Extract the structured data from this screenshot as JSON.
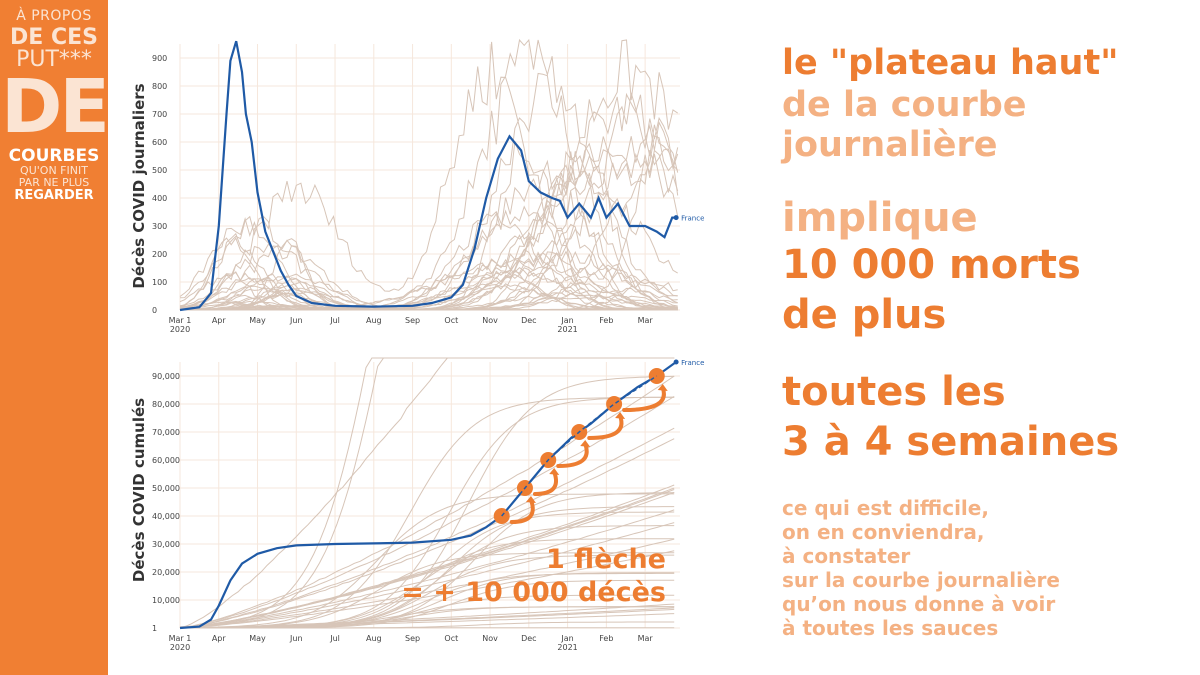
{
  "sidebar": {
    "line1": "À PROPOS",
    "line2": "DE CES",
    "line3": "PUT***",
    "line4": "DE",
    "line5": "COURBES",
    "line6": "QU'ON FINIT",
    "line7": "PAR NE PLUS",
    "line8": "REGARDER"
  },
  "right_text": {
    "block1_line1": "le \"plateau haut\"",
    "block1_line2": "de la courbe",
    "block1_line3": "journalière",
    "block2_line1": "implique",
    "block2_line2": "10 000 morts",
    "block2_line3": "de plus",
    "block3_line1": "toutes les",
    "block3_line2": "3 à 4 semaines",
    "block4_lines": [
      "ce qui est difficile,",
      "on en conviendra,",
      "à constater",
      "sur la courbe journalière",
      "qu’on nous donne à voir",
      "à toutes les sauces"
    ]
  },
  "colors": {
    "orange": "#ed7d31",
    "sidebar": "#f07f33",
    "france_line": "#1f5aa6",
    "others": "#d7c5b8",
    "grid": "#f6e7dc"
  },
  "chart_data": [
    {
      "type": "line",
      "ylabel": "Décès COVID journaliers",
      "ylim": [
        0,
        950
      ],
      "yticks": [
        0,
        100,
        200,
        300,
        400,
        500,
        600,
        700,
        800,
        900
      ],
      "xticks": [
        "Mar 1\n2020",
        "Apr",
        "May",
        "Jun",
        "Jul",
        "Aug",
        "Sep",
        "Oct",
        "Nov",
        "Dec",
        "Jan\n2021",
        "Feb",
        "Mar"
      ],
      "grid": true,
      "series": [
        {
          "name": "France",
          "x": [
            0,
            0.5,
            0.8,
            1.0,
            1.2,
            1.3,
            1.45,
            1.6,
            1.7,
            1.85,
            2.0,
            2.2,
            2.4,
            2.6,
            2.8,
            3.0,
            3.4,
            4,
            5,
            6,
            6.5,
            7.0,
            7.3,
            7.6,
            7.9,
            8.2,
            8.5,
            8.8,
            9.0,
            9.3,
            9.6,
            9.8,
            10.0,
            10.3,
            10.6,
            10.8,
            11.0,
            11.3,
            11.6,
            12.0,
            12.3,
            12.5,
            12.7,
            12.8
          ],
          "values": [
            0,
            10,
            60,
            300,
            700,
            890,
            960,
            850,
            700,
            600,
            420,
            280,
            210,
            140,
            90,
            50,
            25,
            15,
            12,
            15,
            25,
            45,
            90,
            220,
            400,
            540,
            620,
            570,
            460,
            420,
            400,
            390,
            330,
            380,
            330,
            400,
            330,
            380,
            300,
            300,
            280,
            260,
            330,
            330
          ]
        }
      ]
    },
    {
      "type": "line",
      "ylabel": "Décès COVID cumulés",
      "ylim": [
        0,
        95000
      ],
      "yticks": [
        "1",
        "10,000",
        "20,000",
        "30,000",
        "40,000",
        "50,000",
        "60,000",
        "70,000",
        "80,000",
        "90,000"
      ],
      "xticks": [
        "Mar 1\n2020",
        "Apr",
        "May",
        "Jun",
        "Jul",
        "Aug",
        "Sep",
        "Oct",
        "Nov",
        "Dec",
        "Jan\n2021",
        "Feb",
        "Mar"
      ],
      "grid": true,
      "series": [
        {
          "name": "France",
          "x": [
            0,
            0.5,
            0.8,
            1.0,
            1.3,
            1.6,
            2.0,
            2.5,
            3.0,
            4,
            5,
            6,
            7,
            7.5,
            7.9,
            8.3,
            8.9,
            9.5,
            10.1,
            10.6,
            11.2,
            11.8,
            12.3,
            12.8
          ],
          "values": [
            1,
            500,
            3000,
            8000,
            17000,
            23000,
            26500,
            28500,
            29500,
            30000,
            30200,
            30500,
            31500,
            33000,
            36000,
            40000,
            50000,
            60000,
            68000,
            73000,
            80000,
            86000,
            90000,
            95000
          ]
        }
      ],
      "annotation": [
        "1 flèche",
        "= + 10 000 décès"
      ],
      "milestones": [
        40000,
        50000,
        60000,
        70000,
        80000,
        90000
      ]
    }
  ]
}
